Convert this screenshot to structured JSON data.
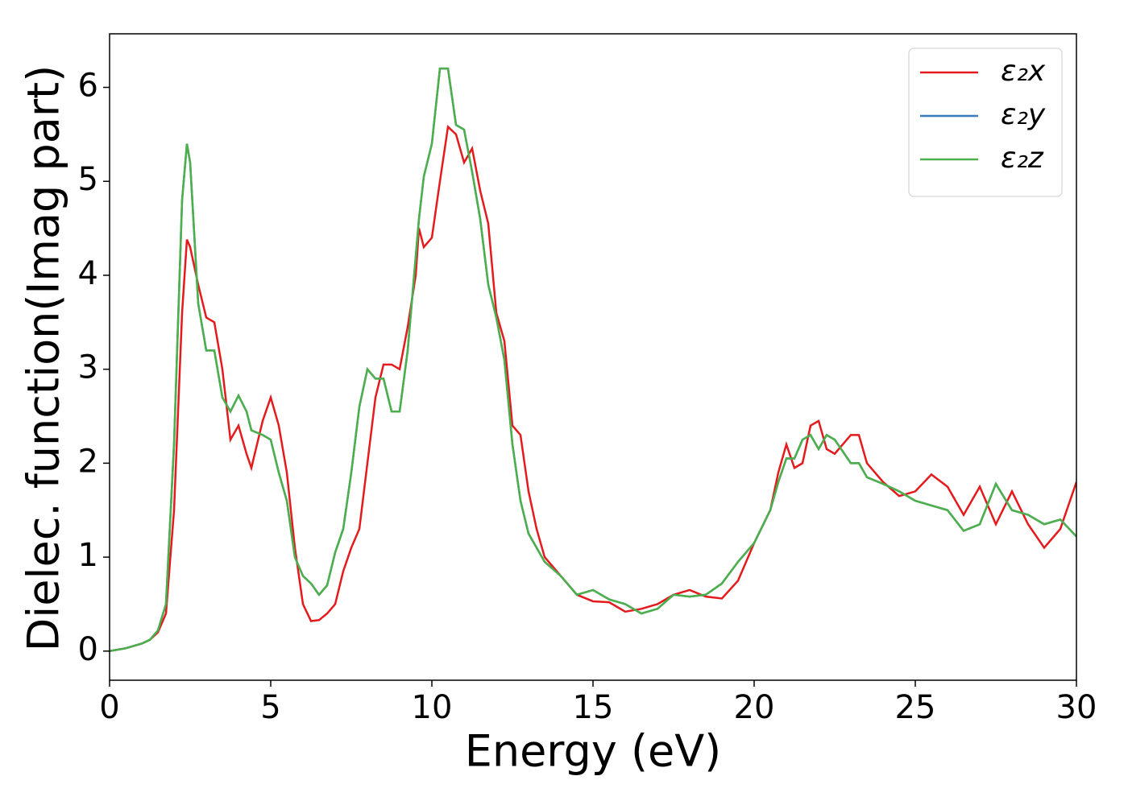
{
  "chart_data": {
    "type": "line",
    "xlabel": "Energy (eV)",
    "ylabel": "Dielec. function(Imag part)",
    "x": [
      0,
      0.5,
      1,
      1.25,
      1.5,
      1.75,
      2,
      2.25,
      2.4,
      2.5,
      2.75,
      3,
      3.25,
      3.5,
      3.75,
      4,
      4.25,
      4.4,
      4.75,
      5,
      5.25,
      5.5,
      5.75,
      6,
      6.25,
      6.5,
      6.75,
      7,
      7.25,
      7.5,
      7.75,
      8,
      8.25,
      8.5,
      8.75,
      9,
      9.25,
      9.5,
      9.6,
      9.75,
      10,
      10.25,
      10.5,
      10.75,
      11,
      11.25,
      11.5,
      11.75,
      12,
      12.25,
      12.5,
      12.75,
      13,
      13.25,
      13.5,
      14,
      14.5,
      15,
      15.5,
      16,
      16.5,
      17,
      17.5,
      18,
      18.5,
      19,
      19.5,
      20,
      20.5,
      20.75,
      21,
      21.25,
      21.5,
      21.75,
      22,
      22.25,
      22.5,
      23,
      23.25,
      23.5,
      24,
      24.5,
      25,
      25.5,
      26,
      26.5,
      27,
      27.5,
      28,
      28.5,
      29,
      29.5,
      30
    ],
    "series": [
      {
        "name": "ε₂x",
        "color": "#e41a1c",
        "values": [
          0,
          0.03,
          0.08,
          0.12,
          0.2,
          0.4,
          1.5,
          3.6,
          4.38,
          4.3,
          3.9,
          3.55,
          3.5,
          3.0,
          2.25,
          2.4,
          2.1,
          1.95,
          2.45,
          2.7,
          2.4,
          1.9,
          1.1,
          0.5,
          0.32,
          0.33,
          0.4,
          0.5,
          0.85,
          1.1,
          1.3,
          2.0,
          2.7,
          3.05,
          3.05,
          3.0,
          3.45,
          4.0,
          4.5,
          4.3,
          4.4,
          5.0,
          5.58,
          5.5,
          5.2,
          5.35,
          4.9,
          4.55,
          3.6,
          3.3,
          2.4,
          2.3,
          1.7,
          1.3,
          1.0,
          0.8,
          0.6,
          0.53,
          0.52,
          0.42,
          0.45,
          0.5,
          0.6,
          0.65,
          0.58,
          0.56,
          0.75,
          1.15,
          1.5,
          1.9,
          2.2,
          1.95,
          2.0,
          2.4,
          2.45,
          2.15,
          2.1,
          2.3,
          2.3,
          2.0,
          1.8,
          1.65,
          1.7,
          1.88,
          1.75,
          1.45,
          1.75,
          1.35,
          1.7,
          1.35,
          1.1,
          1.3,
          1.8
        ]
      },
      {
        "name": "ε₂y",
        "color": "#377eb8",
        "values": [
          0,
          0.03,
          0.08,
          0.12,
          0.22,
          0.5,
          2.2,
          4.8,
          5.4,
          5.2,
          3.7,
          3.2,
          3.2,
          2.7,
          2.55,
          2.72,
          2.55,
          2.35,
          2.3,
          2.25,
          1.9,
          1.6,
          1.0,
          0.8,
          0.72,
          0.6,
          0.7,
          1.05,
          1.3,
          1.9,
          2.6,
          3.0,
          2.9,
          2.9,
          2.55,
          2.55,
          3.2,
          4.2,
          4.6,
          5.05,
          5.4,
          6.2,
          6.2,
          5.6,
          5.55,
          5.1,
          4.6,
          3.9,
          3.55,
          3.1,
          2.2,
          1.6,
          1.25,
          1.1,
          0.95,
          0.8,
          0.6,
          0.65,
          0.55,
          0.5,
          0.4,
          0.45,
          0.6,
          0.58,
          0.6,
          0.72,
          0.95,
          1.15,
          1.5,
          1.8,
          2.05,
          2.05,
          2.25,
          2.3,
          2.15,
          2.3,
          2.25,
          2.0,
          2.0,
          1.85,
          1.78,
          1.7,
          1.6,
          1.55,
          1.5,
          1.28,
          1.35,
          1.78,
          1.5,
          1.45,
          1.35,
          1.4,
          1.22
        ]
      },
      {
        "name": "ε₂z",
        "color": "#4daf4a",
        "values": [
          0,
          0.03,
          0.08,
          0.12,
          0.22,
          0.5,
          2.2,
          4.8,
          5.4,
          5.2,
          3.7,
          3.2,
          3.2,
          2.7,
          2.55,
          2.72,
          2.55,
          2.35,
          2.3,
          2.25,
          1.9,
          1.6,
          1.0,
          0.8,
          0.72,
          0.6,
          0.7,
          1.05,
          1.3,
          1.9,
          2.6,
          3.0,
          2.9,
          2.9,
          2.55,
          2.55,
          3.2,
          4.2,
          4.6,
          5.05,
          5.4,
          6.2,
          6.2,
          5.6,
          5.55,
          5.1,
          4.6,
          3.9,
          3.55,
          3.1,
          2.2,
          1.6,
          1.25,
          1.1,
          0.95,
          0.8,
          0.6,
          0.65,
          0.55,
          0.5,
          0.4,
          0.45,
          0.6,
          0.58,
          0.6,
          0.72,
          0.95,
          1.15,
          1.5,
          1.8,
          2.05,
          2.05,
          2.25,
          2.3,
          2.15,
          2.3,
          2.25,
          2.0,
          2.0,
          1.85,
          1.78,
          1.7,
          1.6,
          1.55,
          1.5,
          1.28,
          1.35,
          1.78,
          1.5,
          1.45,
          1.35,
          1.4,
          1.22
        ]
      }
    ],
    "xlim": [
      0,
      30
    ],
    "xticks": [
      0,
      5,
      10,
      15,
      20,
      25,
      30
    ],
    "ylim": [
      -0.31,
      6.57
    ],
    "yticks": [
      0,
      1,
      2,
      3,
      4,
      5,
      6
    ],
    "grid": false,
    "legend": "upper right"
  }
}
